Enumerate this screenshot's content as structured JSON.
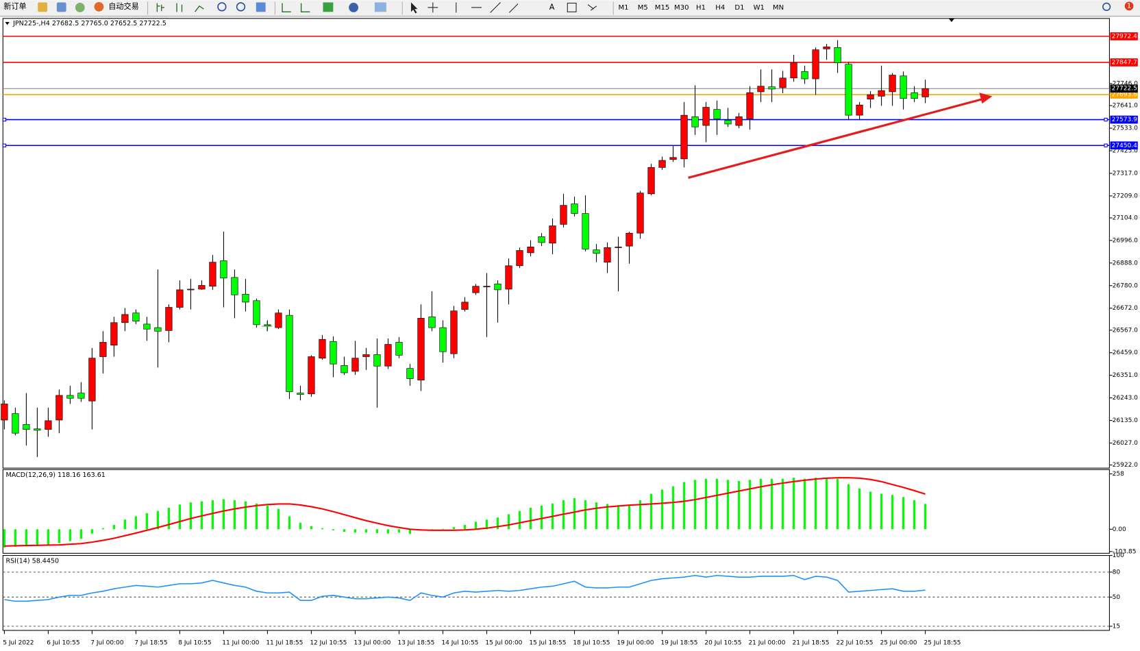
{
  "toolbar": {
    "new_order": "新订单",
    "auto_trading": "自动交易",
    "timeframes": [
      "M1",
      "M5",
      "M15",
      "M30",
      "H1",
      "H4",
      "D1",
      "W1",
      "MN"
    ],
    "badge": "1"
  },
  "chart_data": [
    {
      "type": "candlestick",
      "title": "JPN225-,H4 27682.5 27765.0 27652.5 27722.5",
      "categories": [
        "5 Jul 2022",
        null,
        null,
        null,
        "6 Jul 10:55",
        null,
        null,
        null,
        "7 Jul 00:00",
        null,
        null,
        null,
        "7 Jul 18:55",
        null,
        null,
        null,
        "8 Jul 10:55",
        null,
        null,
        null,
        "11 Jul 00:00",
        null,
        null,
        null,
        "11 Jul 18:55",
        null,
        null,
        null,
        "12 Jul 10:55",
        null,
        null,
        null,
        "13 Jul 00:00",
        null,
        null,
        null,
        "13 Jul 18:55",
        null,
        null,
        null,
        "14 Jul 10:55",
        null,
        null,
        null,
        "15 Jul 00:00",
        null,
        null,
        null,
        "15 Jul 18:55",
        null,
        null,
        null,
        "18 Jul 10:55",
        null,
        null,
        null,
        "19 Jul 00:00",
        null,
        null,
        null,
        "19 Jul 18:55",
        null,
        null,
        null,
        "20 Jul 10:55",
        null,
        null,
        null,
        "21 Jul 00:00",
        null,
        null,
        null,
        "21 Jul 18:55",
        null,
        null,
        null,
        "22 Jul 10:55",
        null,
        null,
        null,
        "25 Jul 00:00",
        null,
        null,
        null,
        "25 Jul 18:55"
      ],
      "open": [
        26137,
        26168,
        26116,
        26095,
        26092,
        26137,
        26255,
        26266,
        26228,
        26440,
        26495,
        26603,
        26649,
        26596,
        26579,
        26565,
        26676,
        26760,
        26763,
        26777,
        26899,
        26819,
        26739,
        26708,
        26593,
        26579,
        26638,
        26266,
        26262,
        26433,
        26513,
        26398,
        26370,
        26440,
        26450,
        26395,
        26509,
        26384,
        26328,
        26631,
        26579,
        26454,
        26666,
        26746,
        26774,
        26788,
        26763,
        26875,
        26937,
        27014,
        26983,
        27073,
        27171,
        27125,
        26951,
        26892,
        26962,
        26969,
        27031,
        27219,
        27345,
        27383,
        27386,
        27588,
        27546,
        27623,
        27571,
        27546,
        27578,
        27707,
        27731,
        27727,
        27773,
        27804,
        27769,
        27912,
        27919,
        27839,
        27595,
        27672,
        27686,
        27707,
        27783,
        27703,
        27682.5
      ],
      "high": [
        26231,
        26196,
        26266,
        26196,
        26196,
        26283,
        26301,
        26318,
        26482,
        26562,
        26631,
        26673,
        26666,
        26631,
        26857,
        26690,
        26805,
        26812,
        26805,
        26927,
        27038,
        26857,
        26812,
        26718,
        26614,
        26666,
        26666,
        26301,
        26447,
        26544,
        26537,
        26440,
        26516,
        26482,
        26527,
        26527,
        26534,
        26405,
        26690,
        26753,
        26614,
        26683,
        26725,
        26788,
        26840,
        26805,
        26910,
        26962,
        26997,
        27031,
        27101,
        27219,
        27205,
        27212,
        26979,
        26986,
        27014,
        27038,
        27233,
        27362,
        27397,
        27449,
        27658,
        27738,
        27658,
        27665,
        27630,
        27606,
        27734,
        27814,
        27814,
        27807,
        27884,
        27832,
        27919,
        27936,
        27954,
        27849,
        27658,
        27710,
        27832,
        27797,
        27804,
        27734,
        27765
      ],
      "low": [
        26092,
        26064,
        26015,
        25960,
        26057,
        26074,
        26214,
        26224,
        26092,
        26360,
        26440,
        26562,
        26596,
        26516,
        26388,
        26509,
        26666,
        26666,
        26760,
        26760,
        26676,
        26624,
        26656,
        26579,
        26562,
        26572,
        26238,
        26231,
        26248,
        26426,
        26342,
        26353,
        26353,
        26377,
        26196,
        26381,
        26433,
        26301,
        26276,
        26562,
        26412,
        26433,
        26656,
        26736,
        26534,
        26603,
        26690,
        26864,
        26920,
        26969,
        26930,
        27059,
        27111,
        26944,
        26892,
        26840,
        26753,
        26885,
        27004,
        27212,
        27334,
        27372,
        27345,
        27501,
        27466,
        27501,
        27539,
        27533,
        27526,
        27658,
        27658,
        27700,
        27755,
        27745,
        27693,
        27860,
        27797,
        27571,
        27571,
        27630,
        27640,
        27640,
        27623,
        27658,
        27652.5
      ],
      "close": [
        26214,
        26074,
        26092,
        26088,
        26134,
        26255,
        26241,
        26241,
        26433,
        26509,
        26603,
        26642,
        26610,
        26572,
        26562,
        26676,
        26760,
        26763,
        26781,
        26892,
        26816,
        26736,
        26701,
        26593,
        26589,
        26649,
        26273,
        26259,
        26440,
        26523,
        26405,
        26363,
        26433,
        26450,
        26395,
        26499,
        26447,
        26335,
        26624,
        26579,
        26464,
        26659,
        26701,
        26777,
        26777,
        26760,
        26875,
        26948,
        26965,
        26986,
        27066,
        27164,
        27125,
        26955,
        26934,
        26962,
        26965,
        27031,
        27223,
        27345,
        27379,
        27393,
        27595,
        27539,
        27633,
        27578,
        27553,
        27588,
        27703,
        27734,
        27720,
        27773,
        27846,
        27769,
        27908,
        27922,
        27846,
        27595,
        27644,
        27693,
        27713,
        27787,
        27675,
        27675,
        27722.5
      ],
      "up_color": "#ff0000",
      "down_color": "#00ff00",
      "ylim": [
        25907,
        28058
      ],
      "yticks": [
        {
          "value": 27746,
          "label": "27746.0"
        },
        {
          "value": 27641,
          "label": "27641.0"
        },
        {
          "value": 27533,
          "label": "27533.0"
        },
        {
          "value": 27425,
          "label": "27425.0"
        },
        {
          "value": 27317,
          "label": "27317.0"
        },
        {
          "value": 27209,
          "label": "27209.0"
        },
        {
          "value": 27104,
          "label": "27104.0"
        },
        {
          "value": 26996,
          "label": "26996.0"
        },
        {
          "value": 26888,
          "label": "26888.0"
        },
        {
          "value": 26780,
          "label": "26780.0"
        },
        {
          "value": 26672,
          "label": "26672.0"
        },
        {
          "value": 26567,
          "label": "26567.0"
        },
        {
          "value": 26459,
          "label": "26459.0"
        },
        {
          "value": 26351,
          "label": "26351.0"
        },
        {
          "value": 26243,
          "label": "26243.0"
        },
        {
          "value": 26135,
          "label": "26135.0"
        },
        {
          "value": 26027,
          "label": "26027.0"
        },
        {
          "value": 25922,
          "label": "25922.0"
        }
      ],
      "levels": [
        {
          "value": 27972.4,
          "color": "#ff0000"
        },
        {
          "value": 27847.7,
          "color": "#ff0000"
        },
        {
          "value": 27693.6,
          "color": "#ffa500"
        },
        {
          "value": 27573.9,
          "color": "#0000ff"
        },
        {
          "value": 27450.4,
          "color": "#0000ff"
        }
      ]
    },
    {
      "type": "macd",
      "title": "MACD(12,26,9) 118.16 163.61",
      "values": [
        -85,
        -82,
        -80,
        -78,
        -75,
        -65,
        -55,
        -45,
        -20,
        5,
        20,
        45,
        60,
        75,
        85,
        100,
        115,
        125,
        130,
        135,
        140,
        135,
        130,
        120,
        110,
        95,
        60,
        30,
        15,
        5,
        -5,
        -12,
        -15,
        -15,
        -18,
        -20,
        -15,
        -22,
        -5,
        0,
        2,
        10,
        20,
        35,
        45,
        55,
        70,
        85,
        100,
        110,
        120,
        135,
        145,
        135,
        125,
        118,
        112,
        115,
        135,
        165,
        185,
        200,
        220,
        230,
        235,
        235,
        230,
        225,
        230,
        235,
        235,
        235,
        240,
        235,
        240,
        240,
        235,
        210,
        190,
        175,
        165,
        160,
        150,
        135,
        118.16
      ],
      "signal": [
        -78,
        -77,
        -76,
        -75,
        -74,
        -73,
        -70,
        -67,
        -60,
        -52,
        -42,
        -30,
        -18,
        -5,
        8,
        22,
        36,
        50,
        62,
        74,
        85,
        95,
        103,
        110,
        115,
        118,
        118,
        113,
        105,
        95,
        82,
        68,
        54,
        40,
        28,
        17,
        8,
        0,
        -3,
        -5,
        -5,
        -5,
        -3,
        0,
        5,
        12,
        20,
        30,
        40,
        50,
        60,
        70,
        80,
        90,
        98,
        104,
        108,
        112,
        115,
        118,
        121,
        125,
        130,
        138,
        148,
        158,
        168,
        178,
        188,
        198,
        207,
        215,
        222,
        228,
        234,
        238,
        240,
        240,
        238,
        232,
        222,
        208,
        195,
        180,
        163.61
      ],
      "color": "#00ff00",
      "signal_color": "#ff0000",
      "ylim": [
        -112,
        278
      ],
      "yticks": [
        258,
        {
          "value": 0,
          "label": "0.00"
        },
        {
          "value": -103.85,
          "label": "-103.85"
        }
      ]
    },
    {
      "type": "rsi",
      "title": "RSI(14) 58.4450",
      "values": [
        47,
        45,
        45,
        46,
        47,
        50,
        52,
        52,
        55,
        57,
        60,
        62,
        64,
        63,
        62,
        64,
        66,
        66,
        67,
        70,
        67,
        64,
        62,
        57,
        55,
        55,
        56,
        46,
        46,
        51,
        52,
        50,
        48,
        48,
        49,
        50,
        49,
        46,
        55,
        52,
        50,
        55,
        57,
        56,
        57,
        58,
        57,
        58,
        60,
        62,
        63,
        66,
        69,
        62,
        61,
        61,
        62,
        62,
        66,
        70,
        72,
        73,
        74,
        76,
        74,
        76,
        75,
        74,
        74,
        75,
        75,
        75,
        76,
        71,
        75,
        74,
        70,
        56,
        57,
        58,
        59,
        60,
        57,
        57,
        58.445
      ],
      "color": "#1e90ff",
      "ylim": [
        10,
        100
      ],
      "yticks": [
        100,
        80,
        50,
        15
      ],
      "dashed_grid": true
    }
  ]
}
